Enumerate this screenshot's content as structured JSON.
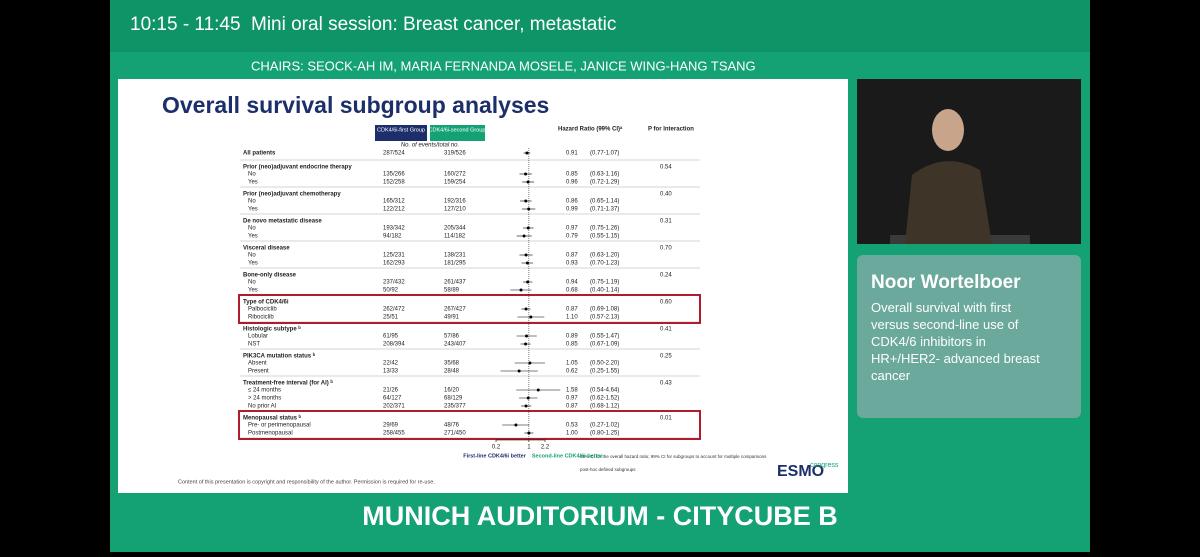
{
  "header": {
    "time": "10:15 - 11:45",
    "session": "Mini oral session: Breast cancer, metastatic",
    "chairs": "CHAIRS: SEOCK-AH IM, MARIA FERNANDA MOSELE, JANICE WING-HANG TSANG"
  },
  "slide": {
    "title": "Overall survival subgroup analyses",
    "columns": {
      "first": "CDK4/6i-first Group",
      "second": "CDK4/6i-second Group",
      "hr": "Hazard Ratio (99% CI)ᵃ",
      "p": "P for Interaction",
      "events": "No. of events/total no."
    },
    "forest": {
      "xlim": [
        0.2,
        2.2
      ],
      "xticks": [
        0.2,
        1,
        2.2
      ],
      "xscale": "log",
      "left": "First-line CDK4/6i better",
      "right": "Second-line CDK4/6i better"
    },
    "groups": [
      {
        "name": "All patients",
        "first": "287/524",
        "second": "319/526",
        "hr": {
          "value": 0.91,
          "label": "0.91"
        },
        "ci": {
          "low": 0.77,
          "high": 1.07,
          "label": "(0.77-1.07)"
        }
      },
      {
        "name": "Prior (neo)adjuvant endocrine therapy",
        "p": "0.54",
        "rows": [
          {
            "label": "No",
            "first": "135/266",
            "second": "160/272",
            "hr": {
              "value": 0.85,
              "label": "0.85"
            },
            "ci": {
              "low": 0.63,
              "high": 1.16,
              "label": "(0.63-1.16)"
            }
          },
          {
            "label": "Yes",
            "first": "152/258",
            "second": "159/254",
            "hr": {
              "value": 0.96,
              "label": "0.96"
            },
            "ci": {
              "low": 0.72,
              "high": 1.29,
              "label": "(0.72-1.29)"
            }
          }
        ]
      },
      {
        "name": "Prior (neo)adjuvant chemotherapy",
        "p": "0.40",
        "rows": [
          {
            "label": "No",
            "first": "165/312",
            "second": "192/316",
            "hr": {
              "value": 0.86,
              "label": "0.86"
            },
            "ci": {
              "low": 0.65,
              "high": 1.14,
              "label": "(0.65-1.14)"
            }
          },
          {
            "label": "Yes",
            "first": "122/212",
            "second": "127/210",
            "hr": {
              "value": 0.99,
              "label": "0.99"
            },
            "ci": {
              "low": 0.71,
              "high": 1.37,
              "label": "(0.71-1.37)"
            }
          }
        ]
      },
      {
        "name": "De novo metastatic disease",
        "p": "0.31",
        "rows": [
          {
            "label": "No",
            "first": "193/342",
            "second": "205/344",
            "hr": {
              "value": 0.97,
              "label": "0.97"
            },
            "ci": {
              "low": 0.75,
              "high": 1.26,
              "label": "(0.75-1.26)"
            }
          },
          {
            "label": "Yes",
            "first": "94/182",
            "second": "114/182",
            "hr": {
              "value": 0.79,
              "label": "0.79"
            },
            "ci": {
              "low": 0.55,
              "high": 1.15,
              "label": "(0.55-1.15)"
            }
          }
        ]
      },
      {
        "name": "Visceral disease",
        "p": "0.70",
        "rows": [
          {
            "label": "No",
            "first": "125/231",
            "second": "138/231",
            "hr": {
              "value": 0.87,
              "label": "0.87"
            },
            "ci": {
              "low": 0.63,
              "high": 1.2,
              "label": "(0.63-1.20)"
            }
          },
          {
            "label": "Yes",
            "first": "162/293",
            "second": "181/295",
            "hr": {
              "value": 0.93,
              "label": "0.93"
            },
            "ci": {
              "low": 0.7,
              "high": 1.23,
              "label": "(0.70-1.23)"
            }
          }
        ]
      },
      {
        "name": "Bone-only disease",
        "p": "0.24",
        "rows": [
          {
            "label": "No",
            "first": "237/432",
            "second": "261/437",
            "hr": {
              "value": 0.94,
              "label": "0.94"
            },
            "ci": {
              "low": 0.75,
              "high": 1.19,
              "label": "(0.75-1.19)"
            }
          },
          {
            "label": "Yes",
            "first": "50/92",
            "second": "58/89",
            "hr": {
              "value": 0.68,
              "label": "0.68"
            },
            "ci": {
              "low": 0.4,
              "high": 1.14,
              "label": "(0.40-1.14)"
            }
          }
        ]
      },
      {
        "name": "Type of CDK4/6i",
        "p": "0.60",
        "highlight": true,
        "rows": [
          {
            "label": "Palbociclib",
            "first": "262/472",
            "second": "267/427",
            "hr": {
              "value": 0.87,
              "label": "0.87"
            },
            "ci": {
              "low": 0.69,
              "high": 1.08,
              "label": "(0.69-1.08)"
            }
          },
          {
            "label": "Ribociclib",
            "first": "25/51",
            "second": "49/91",
            "hr": {
              "value": 1.1,
              "label": "1.10"
            },
            "ci": {
              "low": 0.57,
              "high": 2.13,
              "label": "(0.57-2.13)"
            }
          }
        ]
      },
      {
        "name": "Histologic subtype ᵇ",
        "p": "0.41",
        "rows": [
          {
            "label": "Lobular",
            "first": "61/95",
            "second": "57/86",
            "hr": {
              "value": 0.89,
              "label": "0.89"
            },
            "ci": {
              "low": 0.55,
              "high": 1.47,
              "label": "(0.55-1.47)"
            }
          },
          {
            "label": "NST",
            "first": "208/394",
            "second": "243/407",
            "hr": {
              "value": 0.85,
              "label": "0.85"
            },
            "ci": {
              "low": 0.67,
              "high": 1.09,
              "label": "(0.67-1.09)"
            }
          }
        ]
      },
      {
        "name": "PIK3CA mutation status ᵇ",
        "p": "0.25",
        "rows": [
          {
            "label": "Absent",
            "first": "22/42",
            "second": "35/68",
            "hr": {
              "value": 1.05,
              "label": "1.05"
            },
            "ci": {
              "low": 0.5,
              "high": 2.2,
              "label": "(0.50-2.20)"
            }
          },
          {
            "label": "Present",
            "first": "13/33",
            "second": "28/48",
            "hr": {
              "value": 0.62,
              "label": "0.62"
            },
            "ci": {
              "low": 0.25,
              "high": 1.55,
              "label": "(0.25-1.55)"
            }
          }
        ]
      },
      {
        "name": "Treatment-free interval (for AI) ᵇ",
        "p": "0.43",
        "rows": [
          {
            "label": "≤ 24 months",
            "first": "21/26",
            "second": "16/20",
            "hr": {
              "value": 1.58,
              "label": "1.58"
            },
            "ci": {
              "low": 0.54,
              "high": 4.64,
              "label": "(0.54-4.64)"
            }
          },
          {
            "label": "> 24 months",
            "first": "64/127",
            "second": "68/129",
            "hr": {
              "value": 0.97,
              "label": "0.97"
            },
            "ci": {
              "low": 0.62,
              "high": 1.52,
              "label": "(0.62-1.52)"
            }
          },
          {
            "label": "No prior AI",
            "first": "202/371",
            "second": "235/377",
            "hr": {
              "value": 0.87,
              "label": "0.87"
            },
            "ci": {
              "low": 0.68,
              "high": 1.12,
              "label": "(0.68-1.12)"
            }
          }
        ]
      },
      {
        "name": "Menopausal status ᵇ",
        "p": "0.01",
        "highlight": true,
        "rows": [
          {
            "label": "Pre- or perimenopausal",
            "first": "29/69",
            "second": "48/76",
            "hr": {
              "value": 0.53,
              "label": "0.53"
            },
            "ci": {
              "low": 0.27,
              "high": 1.02,
              "label": "(0.27-1.02)"
            }
          },
          {
            "label": "Postmenopausal",
            "first": "258/455",
            "second": "271/450",
            "hr": {
              "value": 1,
              "label": "1.00"
            },
            "ci": {
              "low": 0.8,
              "high": 1.25,
              "label": "(0.80-1.25)"
            }
          }
        ]
      }
    ],
    "footnotes": {
      "a": "95% CI for the overall hazard ratio; 99% CI for subgroups to account for multiple comparisons",
      "b": "post-hoc defined subgroups"
    },
    "copyright": "Content of this presentation is copyright and responsibility of the author. Permission is required for re-use.",
    "logo": {
      "name": "ESMO",
      "sub": "congress"
    }
  },
  "speaker": {
    "name": "Noor Wortelboer",
    "talk": "Overall survival with first versus second-line use of CDK4/6 inhibitors in HR+/HER2- advanced breast cancer"
  },
  "footer": "MUNICH AUDITORIUM - CITYCUBE B"
}
